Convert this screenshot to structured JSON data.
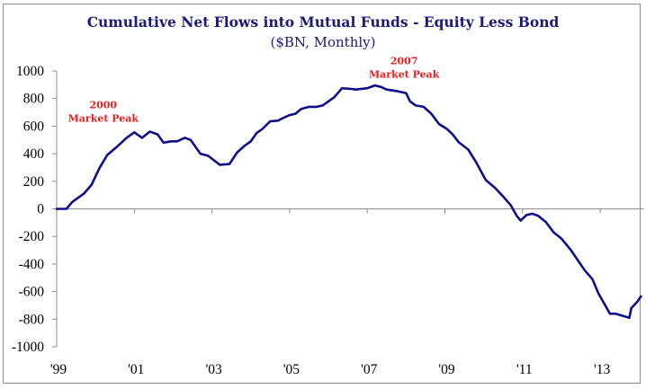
{
  "chart_data": {
    "type": "line",
    "title": "Cumulative Net Flows into Mutual Funds - Equity Less Bond",
    "subtitle": "($BN, Monthly)",
    "xlabel": "",
    "ylabel": "",
    "ylim": [
      -1000,
      1000
    ],
    "yticks": [
      1000,
      800,
      600,
      400,
      200,
      0,
      -200,
      -400,
      -600,
      -800,
      -1000
    ],
    "xlim": [
      1999.0,
      2014.05
    ],
    "xticks": [
      {
        "value": 1999,
        "label": "'99"
      },
      {
        "value": 2001,
        "label": "'01"
      },
      {
        "value": 2003,
        "label": "'03"
      },
      {
        "value": 2005,
        "label": "'05"
      },
      {
        "value": 2007,
        "label": "'07"
      },
      {
        "value": 2009,
        "label": "'09"
      },
      {
        "value": 2011,
        "label": "'11"
      },
      {
        "value": 2013,
        "label": "'13"
      }
    ],
    "grid": false,
    "legend": "none",
    "series": [
      {
        "name": "Equity Less Bond",
        "color": "#0f0f8c",
        "points": [
          [
            1999.0,
            0
          ],
          [
            1999.25,
            0
          ],
          [
            1999.4,
            50
          ],
          [
            1999.7,
            110
          ],
          [
            1999.9,
            175
          ],
          [
            2000.1,
            295
          ],
          [
            2000.3,
            390
          ],
          [
            2000.55,
            450
          ],
          [
            2000.8,
            515
          ],
          [
            2001.0,
            555
          ],
          [
            2001.2,
            515
          ],
          [
            2001.4,
            560
          ],
          [
            2001.6,
            540
          ],
          [
            2001.75,
            480
          ],
          [
            2001.95,
            490
          ],
          [
            2002.1,
            490
          ],
          [
            2002.3,
            515
          ],
          [
            2002.45,
            500
          ],
          [
            2002.7,
            400
          ],
          [
            2002.9,
            385
          ],
          [
            2003.2,
            320
          ],
          [
            2003.45,
            325
          ],
          [
            2003.65,
            410
          ],
          [
            2003.85,
            460
          ],
          [
            2004.0,
            490
          ],
          [
            2004.15,
            550
          ],
          [
            2004.3,
            580
          ],
          [
            2004.5,
            635
          ],
          [
            2004.7,
            640
          ],
          [
            2004.8,
            655
          ],
          [
            2005.0,
            680
          ],
          [
            2005.15,
            690
          ],
          [
            2005.3,
            725
          ],
          [
            2005.5,
            740
          ],
          [
            2005.7,
            740
          ],
          [
            2005.85,
            750
          ],
          [
            2006.15,
            810
          ],
          [
            2006.35,
            875
          ],
          [
            2006.6,
            870
          ],
          [
            2006.7,
            865
          ],
          [
            2007.0,
            875
          ],
          [
            2007.2,
            895
          ],
          [
            2007.35,
            885
          ],
          [
            2007.5,
            865
          ],
          [
            2007.75,
            855
          ],
          [
            2008.0,
            840
          ],
          [
            2008.1,
            780
          ],
          [
            2008.25,
            750
          ],
          [
            2008.45,
            740
          ],
          [
            2008.65,
            690
          ],
          [
            2008.85,
            615
          ],
          [
            2009.05,
            580
          ],
          [
            2009.2,
            540
          ],
          [
            2009.35,
            485
          ],
          [
            2009.6,
            430
          ],
          [
            2009.8,
            340
          ],
          [
            2010.05,
            210
          ],
          [
            2010.3,
            150
          ],
          [
            2010.5,
            90
          ],
          [
            2010.7,
            25
          ],
          [
            2010.85,
            -50
          ],
          [
            2010.95,
            -85
          ],
          [
            2011.1,
            -45
          ],
          [
            2011.25,
            -35
          ],
          [
            2011.4,
            -50
          ],
          [
            2011.6,
            -95
          ],
          [
            2011.8,
            -170
          ],
          [
            2012.0,
            -215
          ],
          [
            2012.25,
            -300
          ],
          [
            2012.6,
            -445
          ],
          [
            2012.8,
            -510
          ],
          [
            2012.95,
            -610
          ],
          [
            2013.25,
            -760
          ],
          [
            2013.4,
            -760
          ],
          [
            2013.75,
            -790
          ],
          [
            2013.8,
            -720
          ],
          [
            2013.95,
            -675
          ],
          [
            2014.05,
            -635
          ]
        ]
      }
    ],
    "annotations": [
      {
        "year_label": "2000",
        "text": "Market Peak",
        "x": 2000.2,
        "y": 730
      },
      {
        "year_label": "2007",
        "text": "Market Peak",
        "x": 2007.95,
        "y": 1050
      }
    ]
  }
}
